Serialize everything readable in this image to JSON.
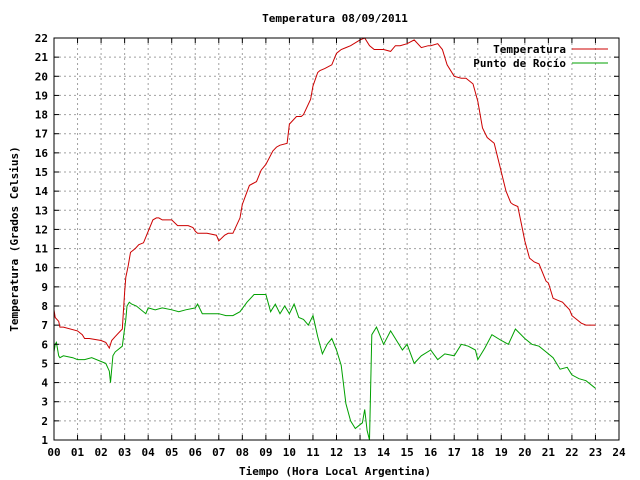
{
  "chart_data": {
    "type": "line",
    "title": "Temperatura 08/09/2011",
    "xlabel": "Tiempo (Hora Local Argentina)",
    "ylabel": "Temperatura (Grados Celsius)",
    "xlim": [
      0,
      24
    ],
    "ylim": [
      1,
      22
    ],
    "x_ticks": [
      0,
      1,
      2,
      3,
      4,
      5,
      6,
      7,
      8,
      9,
      10,
      11,
      12,
      13,
      14,
      15,
      16,
      17,
      18,
      19,
      20,
      21,
      22,
      23,
      24
    ],
    "x_tick_labels": [
      "00",
      "01",
      "02",
      "03",
      "04",
      "05",
      "06",
      "07",
      "08",
      "09",
      "10",
      "11",
      "12",
      "13",
      "14",
      "15",
      "16",
      "17",
      "18",
      "19",
      "20",
      "21",
      "22",
      "23",
      "24"
    ],
    "y_ticks": [
      1,
      2,
      3,
      4,
      5,
      6,
      7,
      8,
      9,
      10,
      11,
      12,
      13,
      14,
      15,
      16,
      17,
      18,
      19,
      20,
      21,
      22
    ],
    "grid": true,
    "legend_position": "top-right",
    "series": [
      {
        "name": "Temperatura",
        "color": "#cc0000",
        "x": [
          0,
          0.05,
          0.2,
          0.25,
          0.4,
          1.0,
          1.2,
          1.3,
          1.5,
          2.0,
          2.2,
          2.35,
          2.45,
          2.6,
          2.9,
          3.0,
          3.05,
          3.15,
          3.25,
          3.45,
          3.6,
          3.8,
          4.0,
          4.2,
          4.35,
          4.45,
          4.6,
          5.0,
          5.25,
          5.4,
          5.7,
          5.9,
          6.0,
          6.1,
          6.5,
          6.9,
          7.0,
          7.25,
          7.4,
          7.6,
          7.9,
          8.0,
          8.3,
          8.45,
          8.6,
          8.8,
          9.0,
          9.3,
          9.45,
          9.6,
          9.9,
          10.0,
          10.3,
          10.5,
          10.6,
          10.9,
          11.0,
          11.2,
          11.3,
          11.5,
          11.8,
          12.0,
          12.2,
          12.4,
          12.6,
          13.0,
          13.2,
          13.4,
          13.6,
          14.0,
          14.3,
          14.5,
          14.7,
          15.0,
          15.3,
          15.6,
          15.9,
          16.0,
          16.3,
          16.5,
          16.7,
          17.0,
          17.3,
          17.5,
          17.8,
          18.0,
          18.2,
          18.4,
          18.7,
          19.0,
          19.2,
          19.4,
          19.5,
          19.7,
          19.9,
          20.0,
          20.2,
          20.4,
          20.6,
          20.9,
          21.0,
          21.2,
          21.4,
          21.6,
          21.9,
          22.0,
          22.2,
          22.4,
          22.6,
          22.8,
          23.0
        ],
        "values": [
          7.8,
          7.4,
          7.2,
          6.9,
          6.9,
          6.7,
          6.5,
          6.3,
          6.3,
          6.2,
          6.1,
          5.8,
          6.2,
          6.4,
          6.8,
          8.7,
          9.5,
          10.1,
          10.8,
          11.0,
          11.2,
          11.3,
          11.9,
          12.5,
          12.6,
          12.6,
          12.5,
          12.5,
          12.2,
          12.2,
          12.2,
          12.1,
          11.9,
          11.8,
          11.8,
          11.7,
          11.4,
          11.7,
          11.8,
          11.8,
          12.6,
          13.3,
          14.3,
          14.4,
          14.5,
          15.1,
          15.4,
          16.1,
          16.3,
          16.4,
          16.5,
          17.5,
          17.9,
          17.9,
          18.0,
          18.8,
          19.5,
          20.2,
          20.3,
          20.4,
          20.6,
          21.2,
          21.4,
          21.5,
          21.6,
          21.9,
          22.0,
          21.6,
          21.4,
          21.4,
          21.3,
          21.6,
          21.6,
          21.7,
          21.9,
          21.5,
          21.6,
          21.6,
          21.7,
          21.4,
          20.6,
          20.0,
          19.9,
          19.9,
          19.6,
          18.7,
          17.3,
          16.8,
          16.5,
          15.0,
          14.0,
          13.4,
          13.3,
          13.2,
          12.0,
          11.4,
          10.5,
          10.3,
          10.2,
          9.3,
          9.2,
          8.4,
          8.3,
          8.2,
          7.8,
          7.5,
          7.3,
          7.1,
          7.0,
          7.0,
          7.0
        ]
      },
      {
        "name": "Punto de Rocío",
        "color": "#00a000",
        "x": [
          0,
          0.05,
          0.1,
          0.2,
          0.25,
          0.4,
          0.8,
          1.0,
          1.3,
          1.6,
          2.0,
          2.2,
          2.35,
          2.4,
          2.5,
          2.6,
          2.9,
          3.05,
          3.1,
          3.2,
          3.3,
          3.5,
          3.9,
          4.0,
          4.3,
          4.6,
          5.0,
          5.3,
          5.6,
          6.0,
          6.1,
          6.3,
          6.5,
          6.8,
          7.0,
          7.3,
          7.6,
          7.9,
          8.2,
          8.5,
          8.8,
          9.0,
          9.2,
          9.4,
          9.6,
          9.8,
          10.0,
          10.2,
          10.4,
          10.6,
          10.8,
          11.0,
          11.2,
          11.4,
          11.6,
          11.8,
          12.0,
          12.2,
          12.4,
          12.6,
          12.8,
          13.0,
          13.1,
          13.2,
          13.3,
          13.4,
          13.5,
          13.7,
          14.0,
          14.3,
          14.6,
          14.8,
          15.0,
          15.3,
          15.6,
          16.0,
          16.3,
          16.6,
          17.0,
          17.3,
          17.6,
          17.9,
          18.0,
          18.3,
          18.6,
          19.0,
          19.3,
          19.6,
          20.0,
          20.3,
          20.6,
          20.9,
          21.2,
          21.5,
          21.8,
          22.0,
          22.3,
          22.6,
          23.0
        ],
        "values": [
          5.6,
          6.0,
          6.1,
          5.4,
          5.3,
          5.4,
          5.3,
          5.2,
          5.2,
          5.3,
          5.1,
          5.0,
          4.6,
          4.0,
          5.4,
          5.6,
          5.9,
          7.3,
          8.0,
          8.2,
          8.1,
          8.0,
          7.6,
          7.9,
          7.8,
          7.9,
          7.8,
          7.7,
          7.8,
          7.9,
          8.1,
          7.6,
          7.6,
          7.6,
          7.6,
          7.5,
          7.5,
          7.7,
          8.2,
          8.6,
          8.6,
          8.6,
          7.7,
          8.1,
          7.6,
          8.0,
          7.6,
          8.1,
          7.4,
          7.3,
          7.0,
          7.5,
          6.4,
          5.5,
          6.0,
          6.3,
          5.7,
          4.9,
          2.9,
          2.0,
          1.6,
          1.8,
          1.9,
          2.6,
          1.5,
          1.0,
          6.5,
          6.9,
          6.0,
          6.7,
          6.1,
          5.7,
          6.0,
          5.0,
          5.4,
          5.7,
          5.2,
          5.5,
          5.4,
          6.0,
          5.9,
          5.7,
          5.2,
          5.8,
          6.5,
          6.2,
          6.0,
          6.8,
          6.3,
          6.0,
          5.9,
          5.6,
          5.3,
          4.7,
          4.8,
          4.4,
          4.2,
          4.1,
          3.7
        ]
      }
    ]
  }
}
